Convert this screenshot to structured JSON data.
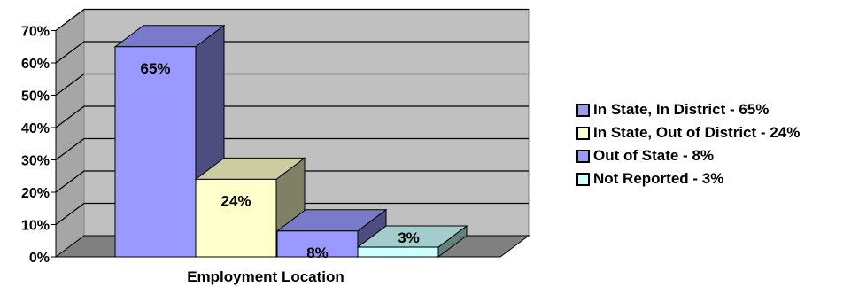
{
  "chart_data": {
    "type": "bar",
    "three_d": true,
    "categories": [
      "In State, In District - 65%",
      "In State, Out of District - 24%",
      "Out of State - 8%",
      "Not Reported - 3%"
    ],
    "values": [
      65,
      24,
      8,
      3
    ],
    "data_labels": [
      "65%",
      "24%",
      "8%",
      "3%"
    ],
    "colors": [
      "#9999ff",
      "#ffffcc",
      "#9999ff",
      "#ccffff"
    ],
    "xlabel": "Employment Location",
    "ylabel": "",
    "ylim": [
      0,
      70
    ],
    "yticks": [
      "0%",
      "10%",
      "20%",
      "30%",
      "40%",
      "50%",
      "60%",
      "70%"
    ],
    "grid": true,
    "legend_position": "right"
  }
}
